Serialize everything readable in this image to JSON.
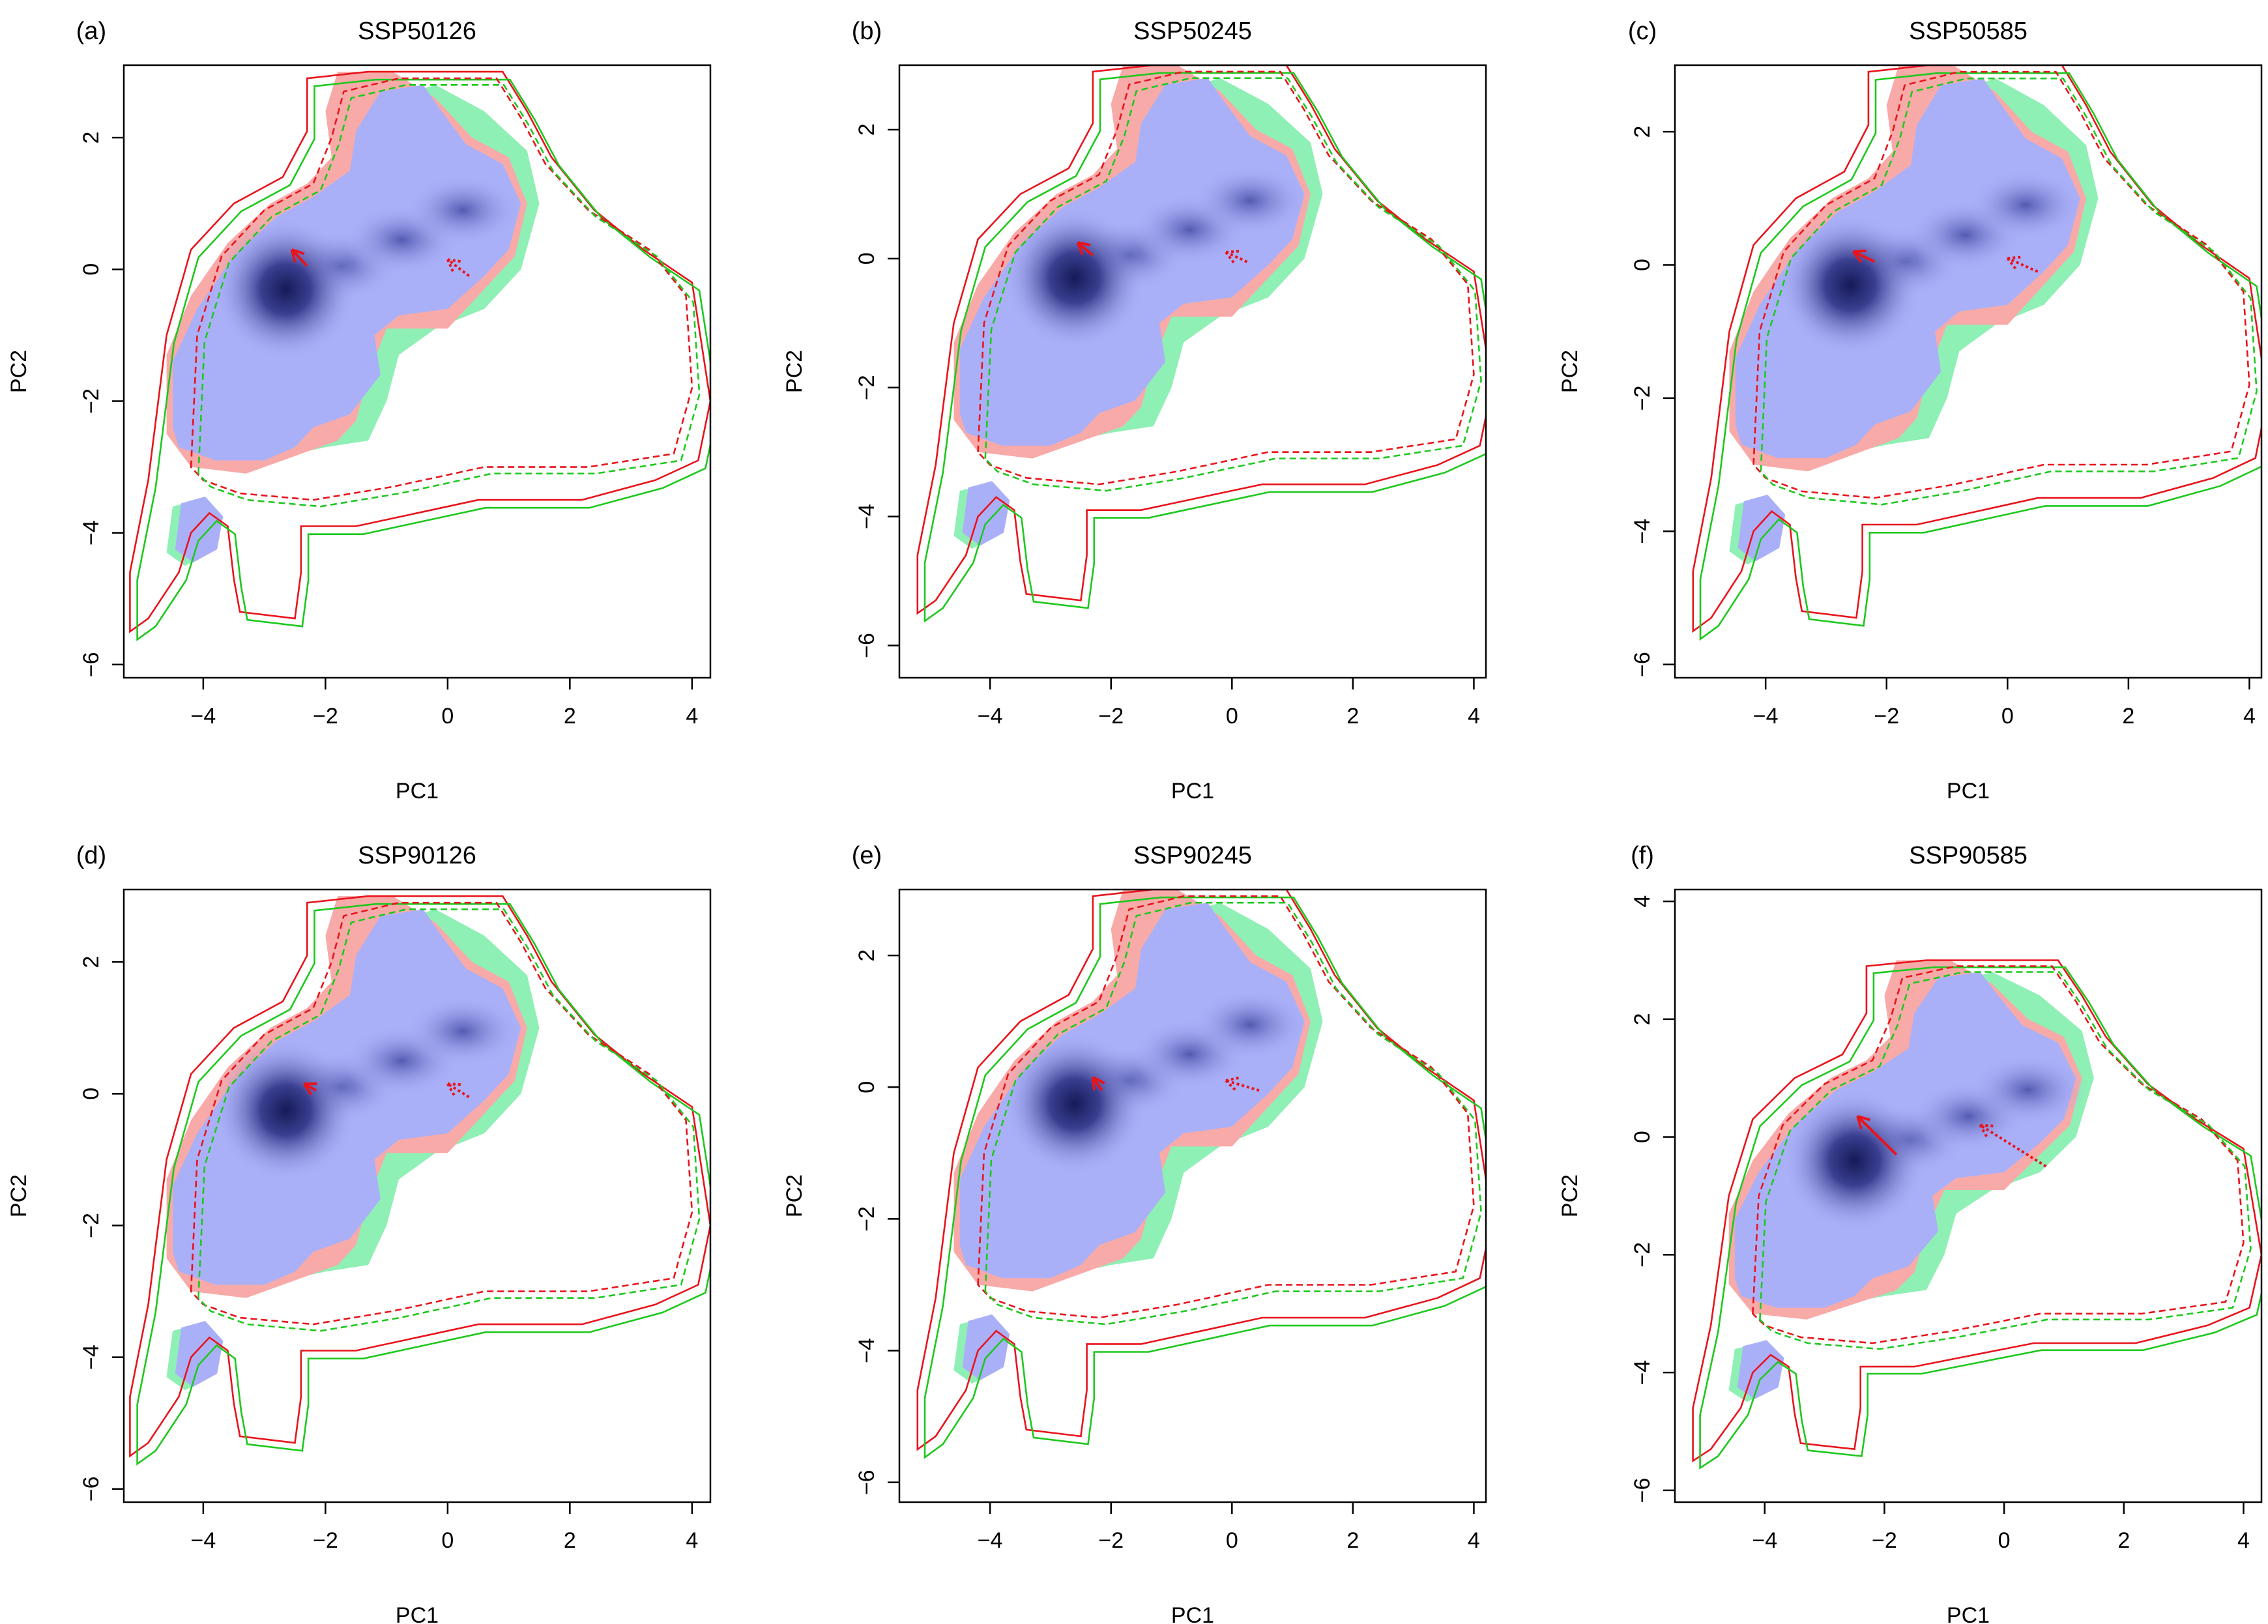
{
  "figure": {
    "colors": {
      "overlap": "#aab0f8",
      "present_only": "#f8aaa8",
      "future_only": "#8ef0b4",
      "density_core": "#151a58",
      "present_contour": "#e8141c",
      "future_contour": "#1ec81e",
      "arrow": "#e8141c",
      "axis": "#000000"
    }
  },
  "chart_data": [
    {
      "panel": "(a)",
      "title": "SSP50126",
      "type": "scatter",
      "xlabel": "PC1",
      "ylabel": "PC2",
      "xlim": [
        -5.3,
        4.3
      ],
      "ylim": [
        -6.2,
        3.1
      ],
      "xticks": [
        -4,
        -2,
        0,
        2,
        4
      ],
      "yticks": [
        -6,
        -4,
        -2,
        0,
        2
      ],
      "xtick_labels": [
        "−4",
        "−2",
        "0",
        "2",
        "4"
      ],
      "ytick_labels": [
        "−6",
        "−4",
        "−2",
        "0",
        "2"
      ],
      "density_peak": [
        -2.65,
        -0.3
      ],
      "centroid_arrows": [
        {
          "name": "realized niche centroid shift",
          "style": "solid",
          "from": [
            -2.3,
            0.05
          ],
          "to": [
            -2.55,
            0.3
          ]
        },
        {
          "name": "fundamental niche centroid shift",
          "style": "dotted",
          "from": [
            0.35,
            -0.1
          ],
          "to": [
            0.0,
            0.15
          ]
        }
      ]
    },
    {
      "panel": "(b)",
      "title": "SSP50245",
      "type": "scatter",
      "xlabel": "PC1",
      "ylabel": "PC2",
      "xlim": [
        -5.5,
        4.2
      ],
      "ylim": [
        -6.5,
        3.0
      ],
      "xticks": [
        -4,
        -2,
        0,
        2,
        4
      ],
      "yticks": [
        -6,
        -4,
        -2,
        0,
        2
      ],
      "xtick_labels": [
        "−4",
        "−2",
        "0",
        "2",
        "4"
      ],
      "ytick_labels": [
        "−6",
        "−4",
        "−2",
        "0",
        "2"
      ],
      "density_peak": [
        -2.6,
        -0.3
      ],
      "centroid_arrows": [
        {
          "name": "realized niche centroid shift",
          "style": "solid",
          "from": [
            -2.3,
            0.05
          ],
          "to": [
            -2.55,
            0.25
          ]
        },
        {
          "name": "fundamental niche centroid shift",
          "style": "dotted",
          "from": [
            0.25,
            -0.05
          ],
          "to": [
            -0.1,
            0.1
          ]
        }
      ]
    },
    {
      "panel": "(c)",
      "title": "SSP50585",
      "type": "scatter",
      "xlabel": "PC1",
      "ylabel": "PC2",
      "xlim": [
        -5.5,
        4.2
      ],
      "ylim": [
        -6.2,
        3.0
      ],
      "xticks": [
        -4,
        -2,
        0,
        2,
        4
      ],
      "yticks": [
        -6,
        -4,
        -2,
        0,
        2
      ],
      "xtick_labels": [
        "−4",
        "−2",
        "0",
        "2",
        "4"
      ],
      "ytick_labels": [
        "−6",
        "−4",
        "−2",
        "0",
        "2"
      ],
      "density_peak": [
        -2.6,
        -0.3
      ],
      "centroid_arrows": [
        {
          "name": "realized niche centroid shift",
          "style": "solid",
          "from": [
            -2.2,
            0.05
          ],
          "to": [
            -2.55,
            0.2
          ]
        },
        {
          "name": "fundamental niche centroid shift",
          "style": "dotted",
          "from": [
            0.5,
            -0.1
          ],
          "to": [
            0.0,
            0.1
          ]
        }
      ]
    },
    {
      "panel": "(d)",
      "title": "SSP90126",
      "type": "scatter",
      "xlabel": "PC1",
      "ylabel": "PC2",
      "xlim": [
        -5.3,
        4.3
      ],
      "ylim": [
        -6.2,
        3.1
      ],
      "xticks": [
        -4,
        -2,
        0,
        2,
        4
      ],
      "yticks": [
        -6,
        -4,
        -2,
        0,
        2
      ],
      "xtick_labels": [
        "−4",
        "−2",
        "0",
        "2",
        "4"
      ],
      "ytick_labels": [
        "−6",
        "−4",
        "−2",
        "0",
        "2"
      ],
      "density_peak": [
        -2.65,
        -0.25
      ],
      "centroid_arrows": [
        {
          "name": "realized niche centroid shift",
          "style": "solid",
          "from": [
            -2.15,
            0.05
          ],
          "to": [
            -2.35,
            0.15
          ]
        },
        {
          "name": "fundamental niche centroid shift",
          "style": "dotted",
          "from": [
            0.35,
            -0.05
          ],
          "to": [
            0.0,
            0.15
          ]
        }
      ]
    },
    {
      "panel": "(e)",
      "title": "SSP90245",
      "type": "scatter",
      "xlabel": "PC1",
      "ylabel": "PC2",
      "xlim": [
        -5.5,
        4.2
      ],
      "ylim": [
        -6.3,
        3.0
      ],
      "xticks": [
        -4,
        -2,
        0,
        2,
        4
      ],
      "yticks": [
        -6,
        -4,
        -2,
        0,
        2
      ],
      "xtick_labels": [
        "−4",
        "−2",
        "0",
        "2",
        "4"
      ],
      "ytick_labels": [
        "−6",
        "−4",
        "−2",
        "0",
        "2"
      ],
      "density_peak": [
        -2.6,
        -0.25
      ],
      "centroid_arrows": [
        {
          "name": "realized niche centroid shift",
          "style": "solid",
          "from": [
            -2.15,
            -0.05
          ],
          "to": [
            -2.3,
            0.15
          ]
        },
        {
          "name": "fundamental niche centroid shift",
          "style": "dotted",
          "from": [
            0.45,
            -0.05
          ],
          "to": [
            -0.1,
            0.1
          ]
        }
      ]
    },
    {
      "panel": "(f)",
      "title": "SSP90585",
      "type": "scatter",
      "xlabel": "PC1",
      "ylabel": "PC2",
      "xlim": [
        -5.5,
        4.3
      ],
      "ylim": [
        -6.2,
        4.2
      ],
      "xticks": [
        -4,
        -2,
        0,
        2,
        4
      ],
      "yticks": [
        -6,
        -4,
        -2,
        0,
        2,
        4
      ],
      "xtick_labels": [
        "−4",
        "−2",
        "0",
        "2",
        "4"
      ],
      "ytick_labels": [
        "−6",
        "−4",
        "−2",
        "0",
        "2",
        "4"
      ],
      "density_peak": [
        -2.5,
        -0.4
      ],
      "centroid_arrows": [
        {
          "name": "realized niche centroid shift",
          "style": "solid",
          "from": [
            -1.8,
            -0.3
          ],
          "to": [
            -2.45,
            0.35
          ]
        },
        {
          "name": "fundamental niche centroid shift",
          "style": "dotted",
          "from": [
            0.7,
            -0.5
          ],
          "to": [
            -0.4,
            0.2
          ]
        }
      ]
    }
  ]
}
